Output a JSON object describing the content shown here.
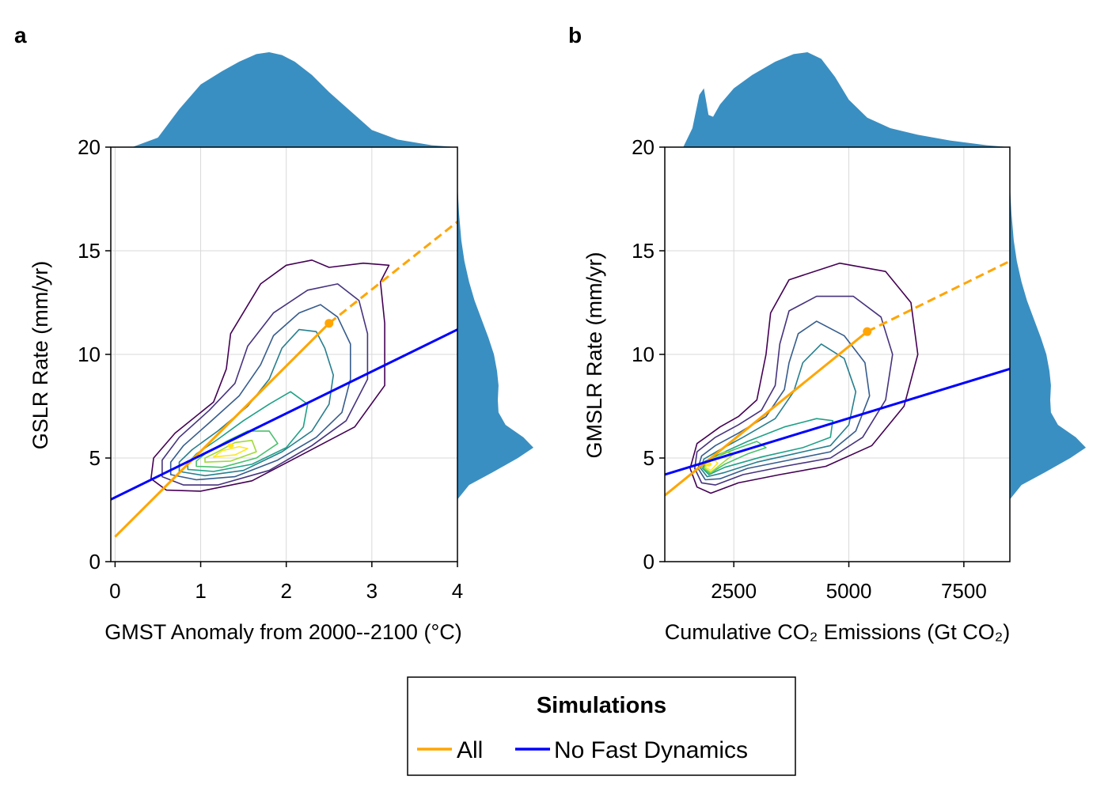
{
  "colors": {
    "all": "#FFA500",
    "no_fast_dynamics": "#0000FF",
    "marginal": "#3a8fc2",
    "grid": "#d9d9d9",
    "contour": [
      "#440154",
      "#46337e",
      "#365c8d",
      "#277f8e",
      "#1fa187",
      "#4ac16d",
      "#a0da39",
      "#fde725"
    ]
  },
  "legend": {
    "title": "Simulations",
    "entries": [
      "All",
      "No Fast Dynamics"
    ]
  },
  "chart_data": [
    {
      "type": "scatter",
      "panel_label": "a",
      "xlabel": "GMST Anomaly from 2000--2100 (°C)",
      "ylabel": "GSLR Rate (mm/yr)",
      "xlim": [
        -0.05,
        4
      ],
      "ylim": [
        0,
        20
      ],
      "xticks": [
        0,
        1,
        2,
        3,
        4
      ],
      "yticks": [
        0,
        5,
        10,
        15,
        20
      ],
      "grid": true,
      "series": [
        {
          "name": "All",
          "style": "solid",
          "x": [
            0,
            2.5
          ],
          "y": [
            1.2,
            11.5
          ]
        },
        {
          "name": "All",
          "style": "dashed",
          "x": [
            2.5,
            4
          ],
          "y": [
            11.5,
            16.4
          ]
        },
        {
          "name": "No Fast Dynamics",
          "style": "solid",
          "x": [
            -0.05,
            4
          ],
          "y": [
            3.0,
            11.2
          ]
        }
      ],
      "marker": {
        "series": "All",
        "x": 2.5,
        "y": 11.5
      },
      "density_center": {
        "x": 1.35,
        "y": 5.6
      },
      "density_contours": [
        [
          [
            0.42,
            4.0
          ],
          [
            0.6,
            3.45
          ],
          [
            1.0,
            3.4
          ],
          [
            1.6,
            3.9
          ],
          [
            2.2,
            5.2
          ],
          [
            2.8,
            6.5
          ],
          [
            3.15,
            8.5
          ],
          [
            3.15,
            11.5
          ],
          [
            3.1,
            13.5
          ],
          [
            3.2,
            14.3
          ],
          [
            2.9,
            14.4
          ],
          [
            2.5,
            14.2
          ],
          [
            2.3,
            14.55
          ],
          [
            2.0,
            14.3
          ],
          [
            1.7,
            13.4
          ],
          [
            1.35,
            11.0
          ],
          [
            1.3,
            9.3
          ],
          [
            1.15,
            7.7
          ],
          [
            0.7,
            6.2
          ],
          [
            0.45,
            5.0
          ],
          [
            0.42,
            4.0
          ]
        ],
        [
          [
            0.55,
            4.1
          ],
          [
            0.8,
            3.7
          ],
          [
            1.2,
            3.7
          ],
          [
            1.8,
            4.4
          ],
          [
            2.3,
            5.6
          ],
          [
            2.7,
            6.8
          ],
          [
            2.95,
            8.8
          ],
          [
            2.95,
            11.0
          ],
          [
            2.85,
            12.6
          ],
          [
            2.6,
            13.4
          ],
          [
            2.25,
            13.1
          ],
          [
            1.85,
            12.0
          ],
          [
            1.55,
            10.4
          ],
          [
            1.4,
            8.6
          ],
          [
            1.1,
            7.3
          ],
          [
            0.75,
            6.0
          ],
          [
            0.55,
            4.9
          ],
          [
            0.55,
            4.1
          ]
        ],
        [
          [
            0.65,
            4.2
          ],
          [
            0.95,
            3.95
          ],
          [
            1.4,
            4.1
          ],
          [
            1.9,
            4.9
          ],
          [
            2.35,
            6.0
          ],
          [
            2.65,
            7.2
          ],
          [
            2.75,
            8.8
          ],
          [
            2.75,
            10.5
          ],
          [
            2.6,
            11.8
          ],
          [
            2.4,
            12.4
          ],
          [
            2.15,
            12.0
          ],
          [
            1.85,
            10.9
          ],
          [
            1.7,
            9.5
          ],
          [
            1.45,
            8.0
          ],
          [
            1.1,
            6.7
          ],
          [
            0.8,
            5.6
          ],
          [
            0.65,
            4.8
          ],
          [
            0.65,
            4.2
          ]
        ],
        [
          [
            0.75,
            4.35
          ],
          [
            1.05,
            4.15
          ],
          [
            1.5,
            4.4
          ],
          [
            1.95,
            5.3
          ],
          [
            2.3,
            6.3
          ],
          [
            2.5,
            7.6
          ],
          [
            2.55,
            9.0
          ],
          [
            2.45,
            10.3
          ],
          [
            2.35,
            11.1
          ],
          [
            2.15,
            11.2
          ],
          [
            1.95,
            10.3
          ],
          [
            1.8,
            8.8
          ],
          [
            1.55,
            7.5
          ],
          [
            1.2,
            6.3
          ],
          [
            0.9,
            5.4
          ],
          [
            0.75,
            4.8
          ],
          [
            0.75,
            4.35
          ]
        ],
        [
          [
            0.85,
            4.45
          ],
          [
            1.15,
            4.35
          ],
          [
            1.6,
            4.7
          ],
          [
            2.0,
            5.5
          ],
          [
            2.2,
            6.5
          ],
          [
            2.25,
            7.6
          ],
          [
            2.05,
            8.2
          ],
          [
            1.8,
            7.6
          ],
          [
            1.5,
            6.8
          ],
          [
            1.2,
            5.9
          ],
          [
            0.95,
            5.2
          ],
          [
            0.85,
            4.75
          ],
          [
            0.85,
            4.45
          ]
        ],
        [
          [
            0.95,
            4.6
          ],
          [
            1.25,
            4.55
          ],
          [
            1.65,
            5.0
          ],
          [
            1.9,
            5.7
          ],
          [
            1.8,
            6.3
          ],
          [
            1.55,
            6.3
          ],
          [
            1.3,
            5.8
          ],
          [
            1.05,
            5.2
          ],
          [
            0.95,
            4.85
          ],
          [
            0.95,
            4.6
          ]
        ],
        [
          [
            1.05,
            4.8
          ],
          [
            1.35,
            4.85
          ],
          [
            1.65,
            5.3
          ],
          [
            1.6,
            5.85
          ],
          [
            1.4,
            5.75
          ],
          [
            1.2,
            5.3
          ],
          [
            1.05,
            5.0
          ],
          [
            1.05,
            4.8
          ]
        ],
        [
          [
            1.15,
            5.05
          ],
          [
            1.4,
            5.15
          ],
          [
            1.55,
            5.45
          ],
          [
            1.45,
            5.55
          ],
          [
            1.25,
            5.35
          ],
          [
            1.15,
            5.05
          ]
        ]
      ],
      "marginal_top": {
        "axis": "x",
        "x": [
          0.2,
          0.5,
          0.75,
          1.0,
          1.25,
          1.45,
          1.65,
          1.8,
          1.95,
          2.1,
          2.3,
          2.5,
          2.75,
          3.0,
          3.3,
          3.7,
          4.0
        ],
        "density": [
          0.0,
          0.1,
          0.4,
          0.66,
          0.8,
          0.9,
          0.98,
          1.0,
          0.97,
          0.9,
          0.76,
          0.58,
          0.38,
          0.18,
          0.08,
          0.02,
          0.0
        ]
      },
      "marginal_right": {
        "axis": "y",
        "y": [
          3.0,
          3.7,
          4.3,
          5.0,
          5.5,
          6.0,
          6.6,
          7.2,
          7.8,
          8.5,
          9.2,
          10.0,
          10.8,
          11.7,
          12.6,
          13.5,
          14.5,
          15.5,
          16.8,
          18.2
        ],
        "density": [
          0.0,
          0.15,
          0.45,
          0.78,
          0.98,
          0.85,
          0.62,
          0.53,
          0.52,
          0.53,
          0.51,
          0.47,
          0.4,
          0.31,
          0.22,
          0.15,
          0.09,
          0.05,
          0.02,
          0.0
        ]
      }
    },
    {
      "type": "scatter",
      "panel_label": "b",
      "xlabel": "Cumulative CO₂ Emissions (Gt CO₂)",
      "ylabel": "GMSLR Rate (mm/yr)",
      "xlim": [
        1000,
        8500
      ],
      "ylim": [
        0,
        20
      ],
      "xticks": [
        2500,
        5000,
        7500
      ],
      "yticks": [
        0,
        5,
        10,
        15,
        20
      ],
      "grid": true,
      "series": [
        {
          "name": "All",
          "style": "solid",
          "x": [
            1000,
            5400
          ],
          "y": [
            3.2,
            11.1
          ]
        },
        {
          "name": "All",
          "style": "dashed",
          "x": [
            5400,
            8500
          ],
          "y": [
            11.1,
            14.5
          ]
        },
        {
          "name": "No Fast Dynamics",
          "style": "solid",
          "x": [
            1000,
            8500
          ],
          "y": [
            4.2,
            9.3
          ]
        }
      ],
      "marker": {
        "series": "All",
        "x": 5400,
        "y": 11.1
      },
      "density_center": {
        "x": 1950,
        "y": 4.7
      },
      "density_contours": [
        [
          [
            1550,
            4.5
          ],
          [
            1700,
            3.6
          ],
          [
            2000,
            3.3
          ],
          [
            2600,
            3.8
          ],
          [
            3500,
            4.2
          ],
          [
            4500,
            4.6
          ],
          [
            5500,
            5.6
          ],
          [
            6200,
            7.5
          ],
          [
            6500,
            10.0
          ],
          [
            6350,
            12.5
          ],
          [
            5800,
            14.0
          ],
          [
            4800,
            14.4
          ],
          [
            3700,
            13.6
          ],
          [
            3300,
            12.0
          ],
          [
            3200,
            10.0
          ],
          [
            3000,
            7.8
          ],
          [
            2600,
            7.0
          ],
          [
            2200,
            6.5
          ],
          [
            1700,
            5.7
          ],
          [
            1550,
            4.5
          ]
        ],
        [
          [
            1650,
            4.5
          ],
          [
            1800,
            3.8
          ],
          [
            2100,
            3.7
          ],
          [
            2700,
            4.2
          ],
          [
            3600,
            4.6
          ],
          [
            4600,
            5.0
          ],
          [
            5300,
            6.0
          ],
          [
            5800,
            7.8
          ],
          [
            5950,
            10.0
          ],
          [
            5700,
            11.8
          ],
          [
            5100,
            12.8
          ],
          [
            4300,
            12.8
          ],
          [
            3700,
            12.1
          ],
          [
            3500,
            10.5
          ],
          [
            3400,
            8.5
          ],
          [
            3100,
            7.3
          ],
          [
            2600,
            6.6
          ],
          [
            2100,
            6.0
          ],
          [
            1700,
            5.3
          ],
          [
            1650,
            4.5
          ]
        ],
        [
          [
            1720,
            4.5
          ],
          [
            1880,
            3.95
          ],
          [
            2200,
            4.0
          ],
          [
            2800,
            4.5
          ],
          [
            3700,
            4.9
          ],
          [
            4600,
            5.3
          ],
          [
            5150,
            6.3
          ],
          [
            5450,
            8.0
          ],
          [
            5350,
            9.6
          ],
          [
            4900,
            10.9
          ],
          [
            4300,
            11.6
          ],
          [
            3900,
            11.0
          ],
          [
            3700,
            9.6
          ],
          [
            3600,
            8.3
          ],
          [
            3200,
            7.0
          ],
          [
            2600,
            6.2
          ],
          [
            2100,
            5.6
          ],
          [
            1800,
            5.1
          ],
          [
            1720,
            4.5
          ]
        ],
        [
          [
            1780,
            4.5
          ],
          [
            1920,
            4.1
          ],
          [
            2300,
            4.3
          ],
          [
            3000,
            4.8
          ],
          [
            3800,
            5.2
          ],
          [
            4600,
            5.6
          ],
          [
            5000,
            6.6
          ],
          [
            5150,
            8.2
          ],
          [
            4900,
            9.8
          ],
          [
            4400,
            10.5
          ],
          [
            4000,
            9.6
          ],
          [
            3800,
            8.2
          ],
          [
            3400,
            6.9
          ],
          [
            2700,
            6.0
          ],
          [
            2200,
            5.4
          ],
          [
            1850,
            4.95
          ],
          [
            1780,
            4.5
          ]
        ],
        [
          [
            1820,
            4.5
          ],
          [
            1960,
            4.2
          ],
          [
            2300,
            4.55
          ],
          [
            3100,
            5.05
          ],
          [
            4000,
            5.5
          ],
          [
            4600,
            6.0
          ],
          [
            4650,
            6.8
          ],
          [
            4300,
            6.9
          ],
          [
            3600,
            6.5
          ],
          [
            2800,
            5.8
          ],
          [
            2200,
            5.2
          ],
          [
            1880,
            4.85
          ],
          [
            1820,
            4.5
          ]
        ],
        [
          [
            1850,
            4.5
          ],
          [
            1980,
            4.25
          ],
          [
            2300,
            4.7
          ],
          [
            2800,
            5.2
          ],
          [
            3200,
            5.5
          ],
          [
            3000,
            5.8
          ],
          [
            2500,
            5.4
          ],
          [
            2050,
            5.0
          ],
          [
            1880,
            4.75
          ],
          [
            1850,
            4.5
          ]
        ],
        [
          [
            1870,
            4.5
          ],
          [
            2000,
            4.3
          ],
          [
            2250,
            4.75
          ],
          [
            2500,
            5.2
          ],
          [
            2300,
            5.3
          ],
          [
            2050,
            4.95
          ],
          [
            1890,
            4.7
          ],
          [
            1870,
            4.5
          ]
        ],
        [
          [
            1890,
            4.55
          ],
          [
            2000,
            4.4
          ],
          [
            2150,
            4.75
          ],
          [
            2050,
            4.95
          ],
          [
            1910,
            4.72
          ],
          [
            1890,
            4.55
          ]
        ]
      ],
      "marginal_top": {
        "axis": "x",
        "x": [
          1400,
          1600,
          1750,
          1850,
          1950,
          2050,
          2200,
          2500,
          2900,
          3400,
          3800,
          4100,
          4400,
          4700,
          5000,
          5400,
          5900,
          6500,
          7200,
          8000,
          8500
        ],
        "density": [
          0.0,
          0.2,
          0.55,
          0.62,
          0.34,
          0.32,
          0.45,
          0.62,
          0.76,
          0.9,
          0.98,
          1.0,
          0.93,
          0.74,
          0.5,
          0.31,
          0.2,
          0.13,
          0.07,
          0.02,
          0.0
        ]
      },
      "marginal_right": {
        "axis": "y",
        "y": [
          3.0,
          3.7,
          4.3,
          5.0,
          5.5,
          6.0,
          6.6,
          7.2,
          7.8,
          8.5,
          9.2,
          10.0,
          10.8,
          11.7,
          12.6,
          13.5,
          14.5,
          15.5,
          16.8,
          18.2
        ],
        "density": [
          0.0,
          0.15,
          0.45,
          0.78,
          0.98,
          0.85,
          0.62,
          0.53,
          0.52,
          0.53,
          0.51,
          0.47,
          0.4,
          0.31,
          0.22,
          0.15,
          0.09,
          0.05,
          0.02,
          0.0
        ]
      }
    }
  ]
}
